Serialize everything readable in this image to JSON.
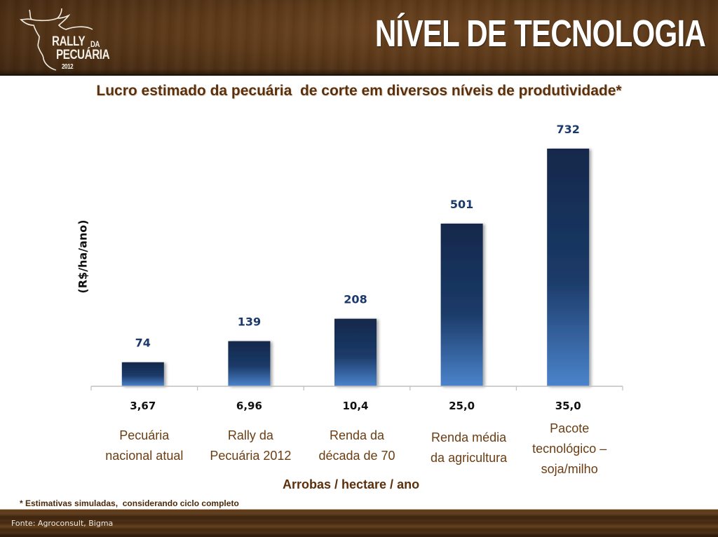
{
  "header": {
    "logo": {
      "icon": "bull-head-outline-icon",
      "line1": "RALLY",
      "line1_suffix": "DA",
      "line2": "PECUÁRIA",
      "year": "2012"
    },
    "title": "NÍVEL DE TECNOLOGIA"
  },
  "colors": {
    "header_brown": "#5a3818",
    "subtitle_brown": "#5b300b",
    "bar_top": "#13284b",
    "bar_bottom": "#4b84cc",
    "value_label": "#1b3a6b",
    "category_label": "#6b3d12",
    "axis": "#bfbfbf"
  },
  "chart_data": {
    "type": "bar",
    "title": "Lucro estimado da pecuária  de corte em diversos níveis de produtividade*",
    "xlabel": "Arrobas / hectare / ano",
    "ylabel": "(R$/ha/ano)",
    "categories": [
      "3,67",
      "6,96",
      "10,4",
      "25,0",
      "35,0"
    ],
    "category_descriptions": [
      [
        "Pecuária",
        "nacional atual"
      ],
      [
        "Rally da",
        "Pecuária 2012"
      ],
      [
        "Renda da",
        "década de 70"
      ],
      [
        "Renda média",
        "da agricultura"
      ],
      [
        "Pacote",
        "tecnológico –",
        "soja/milho"
      ]
    ],
    "values": [
      74,
      139,
      208,
      501,
      732
    ],
    "data_labels": [
      "74",
      "139",
      "208",
      "501",
      "732"
    ],
    "ylim": [
      0,
      800
    ],
    "grid": false,
    "legend": "none"
  },
  "footnote": "* Estimativas simuladas,  considerando ciclo completo",
  "source": "Fonte: Agroconsult, Bigma"
}
